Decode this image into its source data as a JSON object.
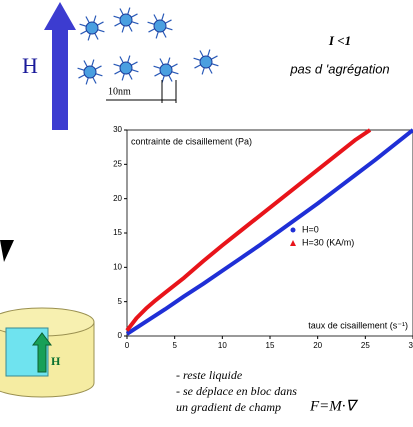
{
  "header": {
    "lambda": "I <1",
    "subtitle": "pas d 'agrégation",
    "field": "H",
    "scale": "10nm"
  },
  "diagram": {
    "field": "H"
  },
  "notes": [
    "- reste liquide",
    "- se déplace en bloc dans",
    "un gradient de champ",
    "F=M·∇"
  ],
  "chart_data": {
    "type": "scatter",
    "y_label": "contrainte de cisaillement (Pa)",
    "x_label": "taux de cisaillement (s⁻¹)",
    "xlim": [
      0,
      30
    ],
    "ylim": [
      0,
      30
    ],
    "xticks": [
      0,
      5,
      10,
      15,
      20,
      25,
      30
    ],
    "yticks": [
      0,
      5,
      10,
      15,
      20,
      25,
      30
    ],
    "legend": "center-right",
    "series": [
      {
        "name": "H=0",
        "color": "#1f2fd6",
        "marker": "circle",
        "x": [
          0,
          2,
          4,
          6,
          8,
          10,
          12,
          14,
          16,
          18,
          20,
          22,
          24,
          26,
          28,
          30
        ],
        "values": [
          0.3,
          2.1,
          3.9,
          5.8,
          7.6,
          9.5,
          11.4,
          13.3,
          15.3,
          17.3,
          19.3,
          21.4,
          23.5,
          25.6,
          27.8,
          30
        ]
      },
      {
        "name": "H=30 (KA/m)",
        "color": "#e8141a",
        "marker": "triangle",
        "x": [
          0,
          1,
          2,
          3,
          4,
          5,
          6,
          8,
          10,
          12,
          14,
          16,
          18,
          20,
          22,
          24,
          25.5
        ],
        "values": [
          0.8,
          2.6,
          4.0,
          5.2,
          6.3,
          7.4,
          8.5,
          10.9,
          13.2,
          15.4,
          17.6,
          19.8,
          22.0,
          24.2,
          26.4,
          28.6,
          30
        ]
      }
    ]
  }
}
